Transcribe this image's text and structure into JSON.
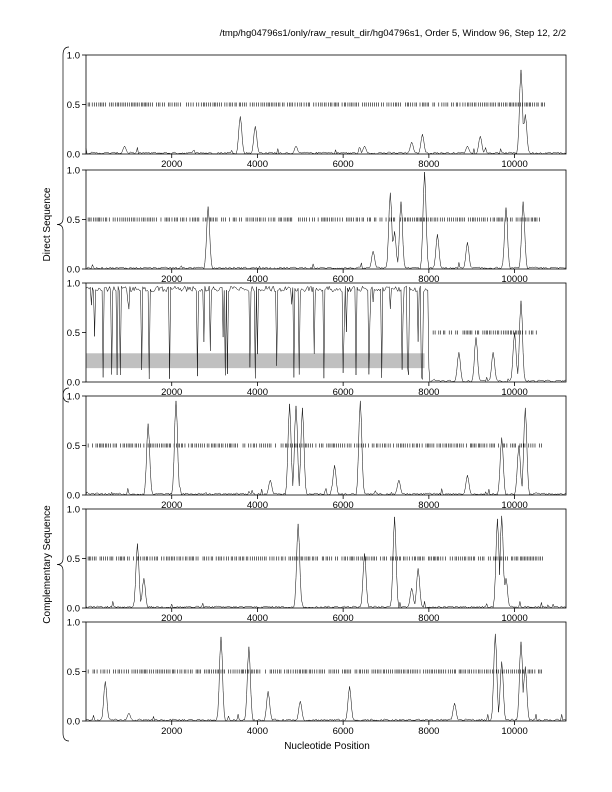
{
  "header": {
    "title": "/tmp/hg04796s1/only/raw_result_dir/hg04796s1, Order 5, Window 96, Step 12, 2/2"
  },
  "xlabel": "Nucleotide Position",
  "groups": [
    {
      "label": "Direct Sequence"
    },
    {
      "label": "Complementary Sequence"
    }
  ],
  "colors": {
    "trace": "#000000",
    "highlight": "#c0c0c0",
    "axis": "#000000"
  },
  "chart_data": [
    {
      "type": "line",
      "panel": 1,
      "xlim": [
        0,
        11200
      ],
      "ylim": [
        0,
        1
      ],
      "xticks": [
        2000,
        4000,
        6000,
        8000,
        10000
      ],
      "yticks": [
        0.0,
        0.5,
        1.0
      ],
      "ytick_labels": [
        "0.0",
        "0.5",
        "1.0"
      ],
      "noise": 0.02,
      "peaks": [
        [
          900,
          0.08
        ],
        [
          3600,
          0.38
        ],
        [
          3950,
          0.28
        ],
        [
          4900,
          0.08
        ],
        [
          6500,
          0.08
        ],
        [
          7600,
          0.12
        ],
        [
          7850,
          0.2
        ],
        [
          8900,
          0.08
        ],
        [
          9200,
          0.18
        ],
        [
          10150,
          0.85
        ],
        [
          10250,
          0.4
        ]
      ],
      "bands": [
        [
          0.0,
          0.15
        ]
      ],
      "dashes": {
        "y": 0.5,
        "x_start": 50,
        "x_end": 10700
      }
    },
    {
      "type": "line",
      "panel": 2,
      "xlim": [
        0,
        11200
      ],
      "ylim": [
        0,
        1
      ],
      "xticks": [
        2000,
        4000,
        6000,
        8000,
        10000
      ],
      "yticks": [
        0.0,
        0.5,
        1.0
      ],
      "ytick_labels": [
        "0.0",
        "0.5",
        "1.0"
      ],
      "noise": 0.02,
      "peaks": [
        [
          2850,
          0.63
        ],
        [
          6700,
          0.18
        ],
        [
          7100,
          0.77
        ],
        [
          7200,
          0.38
        ],
        [
          7350,
          0.68
        ],
        [
          7900,
          0.98
        ],
        [
          8200,
          0.35
        ],
        [
          8900,
          0.27
        ],
        [
          9800,
          0.62
        ],
        [
          10200,
          0.68
        ]
      ],
      "bands": [
        [
          0.0,
          0.1
        ]
      ],
      "dashes": {
        "y": 0.5,
        "x_start": 50,
        "x_end": 10600
      }
    },
    {
      "type": "line",
      "panel": 3,
      "xlim": [
        0,
        11200
      ],
      "ylim": [
        0,
        1
      ],
      "xticks": [
        2000,
        4000,
        6000,
        8000,
        10000
      ],
      "yticks": [
        0.0,
        0.5,
        1.0
      ],
      "ytick_labels": [
        "0.0",
        "0.5",
        "1.0"
      ],
      "noise": 0.02,
      "dense_region": {
        "x_start": 0,
        "x_end": 8000,
        "high": 0.97
      },
      "peaks": [
        [
          8700,
          0.3
        ],
        [
          9100,
          0.45
        ],
        [
          9500,
          0.3
        ],
        [
          10000,
          0.5
        ],
        [
          10150,
          0.82
        ]
      ],
      "highlight_rect": {
        "x_start": 0,
        "x_end": 7900,
        "y_low": 0.14,
        "y_high": 0.29
      },
      "dashes": {
        "y": 0.5,
        "x_start": 8100,
        "x_end": 10600
      }
    },
    {
      "type": "line",
      "panel": 4,
      "xlim": [
        0,
        11200
      ],
      "ylim": [
        0,
        1
      ],
      "xticks": [
        2000,
        4000,
        6000,
        8000,
        10000
      ],
      "yticks": [
        0.0,
        0.5,
        1.0
      ],
      "ytick_labels": [
        "0.0",
        "0.5",
        "1.0"
      ],
      "noise": 0.02,
      "peaks": [
        [
          1450,
          0.72
        ],
        [
          2100,
          0.95
        ],
        [
          4300,
          0.15
        ],
        [
          4750,
          0.92
        ],
        [
          4900,
          0.9
        ],
        [
          5050,
          0.88
        ],
        [
          5800,
          0.3
        ],
        [
          6400,
          0.95
        ],
        [
          7300,
          0.15
        ],
        [
          8900,
          0.2
        ],
        [
          9700,
          0.58
        ],
        [
          10100,
          0.5
        ],
        [
          10250,
          0.88
        ]
      ],
      "bands": [
        [
          0.0,
          0.1
        ]
      ],
      "dashes": {
        "y": 0.5,
        "x_start": 50,
        "x_end": 10650
      }
    },
    {
      "type": "line",
      "panel": 5,
      "xlim": [
        0,
        11200
      ],
      "ylim": [
        0,
        1
      ],
      "xticks": [
        2000,
        4000,
        6000,
        8000,
        10000
      ],
      "yticks": [
        0.0,
        0.5,
        1.0
      ],
      "ytick_labels": [
        "0.0",
        "0.5",
        "1.0"
      ],
      "noise": 0.02,
      "peaks": [
        [
          1200,
          0.65
        ],
        [
          1350,
          0.3
        ],
        [
          4950,
          0.85
        ],
        [
          6500,
          0.55
        ],
        [
          7200,
          0.92
        ],
        [
          7600,
          0.2
        ],
        [
          7750,
          0.4
        ],
        [
          9600,
          0.9
        ],
        [
          9700,
          0.93
        ],
        [
          9800,
          0.3
        ]
      ],
      "bands": [
        [
          0.0,
          0.1
        ]
      ],
      "dashes": {
        "y": 0.5,
        "x_start": 50,
        "x_end": 10650
      }
    },
    {
      "type": "line",
      "panel": 6,
      "xlim": [
        0,
        11200
      ],
      "ylim": [
        0,
        1
      ],
      "xticks": [
        2000,
        4000,
        6000,
        8000,
        10000
      ],
      "yticks": [
        0.0,
        0.5,
        1.0
      ],
      "ytick_labels": [
        "0.0",
        "0.5",
        "1.0"
      ],
      "noise": 0.02,
      "peaks": [
        [
          450,
          0.4
        ],
        [
          1000,
          0.08
        ],
        [
          3150,
          0.85
        ],
        [
          3800,
          0.75
        ],
        [
          4250,
          0.3
        ],
        [
          5000,
          0.2
        ],
        [
          6150,
          0.35
        ],
        [
          8600,
          0.18
        ],
        [
          9550,
          0.88
        ],
        [
          9700,
          0.6
        ],
        [
          10150,
          0.8
        ],
        [
          10250,
          0.55
        ]
      ],
      "bands": [
        [
          0.0,
          0.1
        ]
      ],
      "dashes": {
        "y": 0.5,
        "x_start": 50,
        "x_end": 10650
      }
    }
  ]
}
